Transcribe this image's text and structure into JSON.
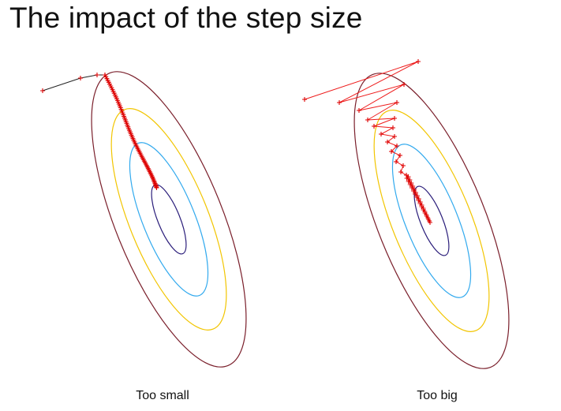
{
  "title": "The impact of the step size",
  "panels": [
    {
      "caption": "Too small"
    },
    {
      "caption": "Too big"
    }
  ],
  "colors": {
    "contour_outer": "#7a1f2b",
    "contour_yellow": "#f2c500",
    "contour_cyan": "#33aaee",
    "contour_inner": "#2a1d7a",
    "path_small": "#222222",
    "path_big": "#ee1c1c",
    "marker": "#dd0000"
  }
}
